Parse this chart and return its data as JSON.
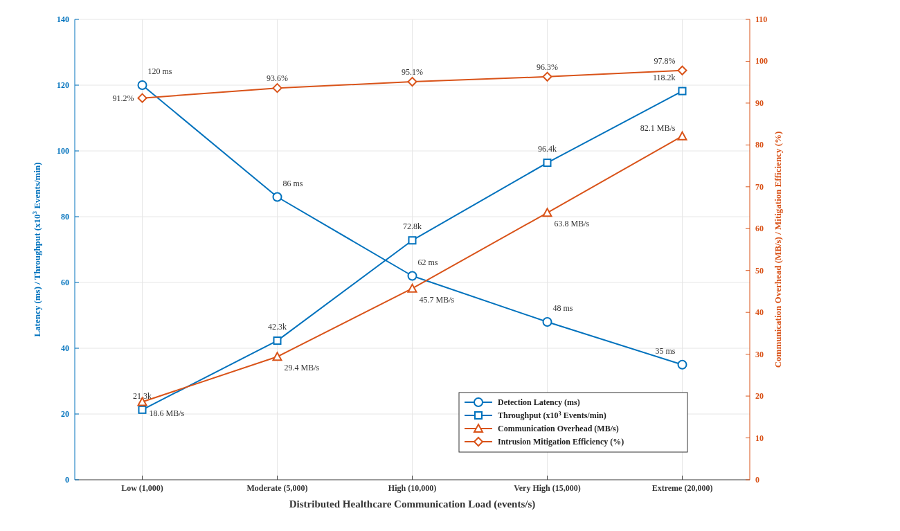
{
  "chart_data": {
    "type": "line",
    "xlabel": "Distributed Healthcare Communication Load (events/s)",
    "ylabel": "Latency (ms) / Throughput (x10$^{3}$ Events/min)",
    "y2label": "Communication Overhead (MB/s) / Mitigation Efficiency (%)",
    "categories": [
      "Low (1,000)",
      "Moderate (5,000)",
      "High (10,000)",
      "Very High (15,000)",
      "Extreme (20,000)"
    ],
    "ylim": [
      0,
      140
    ],
    "yticks": [
      0,
      20,
      40,
      60,
      80,
      100,
      120,
      140
    ],
    "y2lim": [
      0,
      110
    ],
    "y2ticks": [
      0,
      10,
      20,
      30,
      40,
      50,
      60,
      70,
      80,
      90,
      100,
      110
    ],
    "grid": true,
    "legend": "bottom right",
    "line_style": "solid",
    "series": [
      {
        "name": "Detection Latency (ms)",
        "color": "#0072bd",
        "marker": "circle",
        "values": [
          120,
          86,
          62,
          48,
          35
        ],
        "value_labels": [
          "120 ms",
          "86 ms",
          "62 ms",
          "48 ms",
          "35 ms"
        ]
      },
      {
        "name": "Throughput (x10$^{3}$ Events/min)",
        "color": "#0072bd",
        "marker": "square",
        "values": [
          21.3,
          42.3,
          72.8,
          96.4,
          118.2
        ],
        "value_labels": [
          "21.3k",
          "42.3k",
          "72.8k",
          "96.4k",
          "118.2k"
        ]
      },
      {
        "name": "Communication Overhead (MB/s)",
        "color": "#d95319",
        "marker": "triangle",
        "axis": "y2",
        "values": [
          18.6,
          29.4,
          45.7,
          63.8,
          82.1
        ],
        "value_labels": [
          "18.6 MB/s",
          "29.4 MB/s",
          "45.7 MB/s",
          "63.8 MB/s",
          "82.1 MB/s"
        ]
      },
      {
        "name": "Intrusion Mitigation Efficiency (%)",
        "color": "#d95319",
        "marker": "diamond",
        "axis": "y2",
        "values": [
          91.2,
          93.6,
          95.1,
          96.3,
          97.8
        ],
        "value_labels": [
          "91.2%",
          "93.6%",
          "95.1%",
          "96.3%",
          "97.8%"
        ]
      }
    ]
  }
}
